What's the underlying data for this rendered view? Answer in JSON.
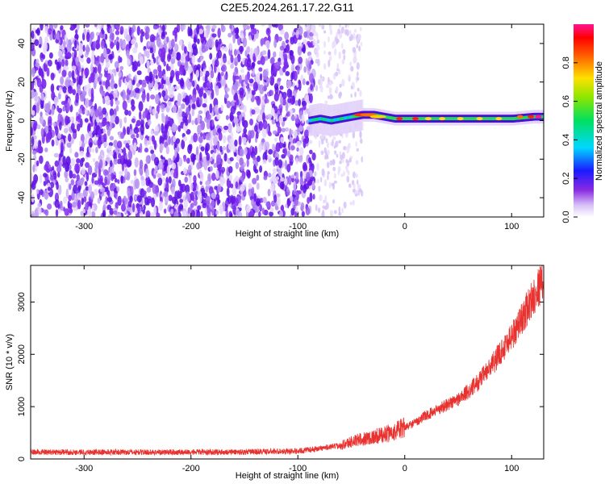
{
  "title": "C2E5.2024.261.17.22.G11",
  "chart_data": [
    {
      "type": "heatmap",
      "xlabel": "Height of straight line (km)",
      "ylabel": "Frequency (Hz)",
      "xlim": [
        -350,
        130
      ],
      "ylim": [
        -50,
        50
      ],
      "xticks": [
        -300,
        -200,
        -100,
        0,
        100
      ],
      "yticks": [
        -40,
        -20,
        0,
        20,
        40
      ],
      "xtick_labels": [
        "-300",
        "-200",
        "-100",
        "0",
        "100"
      ],
      "ytick_labels": [
        "-40",
        "-20",
        "0",
        "20",
        "40"
      ],
      "noise_region_x": [
        -350,
        -85
      ],
      "signal_track": {
        "x": [
          -90,
          -80,
          -70,
          -60,
          -50,
          -40,
          -30,
          -20,
          -10,
          0,
          10,
          20,
          40,
          60,
          80,
          100,
          120,
          130
        ],
        "frequency": [
          0,
          1,
          0,
          1,
          2,
          3,
          3,
          2,
          1,
          1,
          1,
          1,
          1,
          1,
          1,
          1,
          2,
          2
        ]
      },
      "colorbar": {
        "label": "Normalized spectral amplitude",
        "range": [
          0.0,
          1.0
        ],
        "ticks": [
          0.0,
          0.2,
          0.4,
          0.6,
          0.8
        ],
        "tick_labels": [
          "0.0",
          "0.2",
          "0.4",
          "0.6",
          "0.8"
        ],
        "colormap": "rainbow (white-violet-blue-cyan-green-yellow-red-magenta)"
      }
    },
    {
      "type": "line",
      "xlabel": "Height of straight line (km)",
      "ylabel": "SNR (10 * v/v)",
      "xlim": [
        -350,
        130
      ],
      "ylim": [
        0,
        3700
      ],
      "xticks": [
        -300,
        -200,
        -100,
        0,
        100
      ],
      "yticks": [
        0,
        1000,
        2000,
        3000
      ],
      "xtick_labels": [
        "-300",
        "-200",
        "-100",
        "0",
        "100"
      ],
      "ytick_labels": [
        "0",
        "1000",
        "2000",
        "3000"
      ],
      "series": [
        {
          "color": "#e8322f",
          "x": [
            -350,
            -300,
            -250,
            -200,
            -150,
            -100,
            -80,
            -60,
            -50,
            -40,
            -30,
            -20,
            -10,
            0,
            10,
            20,
            30,
            40,
            50,
            60,
            70,
            80,
            90,
            100,
            110,
            120,
            130
          ],
          "values": [
            130,
            130,
            130,
            130,
            135,
            150,
            200,
            260,
            330,
            380,
            420,
            460,
            520,
            600,
            700,
            830,
            940,
            1040,
            1140,
            1300,
            1500,
            1750,
            2050,
            2350,
            2700,
            3100,
            3450
          ]
        }
      ]
    }
  ]
}
